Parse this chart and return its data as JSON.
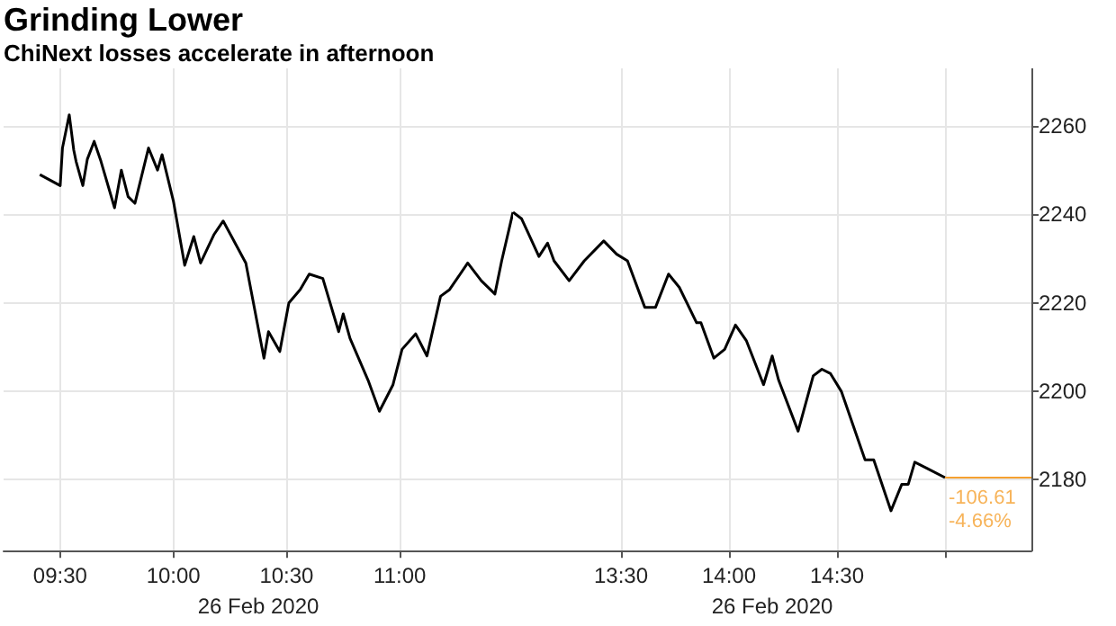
{
  "chart_data": [
    {
      "type": "line",
      "title": "Grinding Lower",
      "subtitle": "ChiNext losses accelerate in afternoon",
      "xlabel": "26 Feb 2020",
      "tick_labels": "x",
      "grid": true,
      "marker": "none",
      "line_style": "solid",
      "xlim": [
        9.25,
        11.5
      ],
      "xticks": [
        {
          "value": 9.5,
          "label": "09:30"
        },
        {
          "value": 10,
          "label": "10:00"
        },
        {
          "value": 10.5,
          "label": "10:30"
        },
        {
          "value": 11,
          "label": "11:00"
        }
      ],
      "ylim": [
        2164,
        2273
      ],
      "yticks": [
        2180,
        2200,
        2220,
        2240,
        2260
      ],
      "series": [
        {
          "color": "#000000",
          "x": [
            9.41,
            9.5,
            9.51,
            9.54,
            9.56,
            9.57,
            9.6,
            9.62,
            9.65,
            9.68,
            9.74,
            9.77,
            9.8,
            9.83,
            9.89,
            9.93,
            9.95,
            10.0,
            10.05,
            10.09,
            10.12,
            10.18,
            10.22,
            10.32,
            10.4,
            10.42,
            10.47,
            10.51,
            10.56,
            10.6,
            10.66,
            10.73,
            10.75,
            10.78,
            10.86,
            10.91,
            10.97,
            11.01,
            11.07,
            11.12,
            11.18,
            11.22,
            11.3,
            11.36,
            11.42,
            11.45,
            11.5
          ],
          "values": [
            2249,
            2246.5,
            2255,
            2262.5,
            2254.5,
            2252,
            2246.5,
            2252.5,
            2256.5,
            2252,
            2241.5,
            2250,
            2244,
            2242.5,
            2255,
            2250,
            2253.5,
            2243,
            2228.5,
            2235,
            2229,
            2235.5,
            2238.5,
            2229,
            2207.5,
            2213.5,
            2209,
            2220,
            2223,
            2226.5,
            2225.5,
            2213.5,
            2217.5,
            2212,
            2202.5,
            2195.5,
            2201.5,
            2209.5,
            2213,
            2208,
            2221.5,
            2223,
            2229,
            2225,
            2222,
            2229.5,
            2240.5
          ]
        }
      ]
    },
    {
      "type": "line",
      "xlabel": "26 Feb 2020",
      "grid": true,
      "marker": "none",
      "line_style": "solid",
      "xlim": [
        13,
        15.4
      ],
      "xticks": [
        {
          "value": 13.5,
          "label": "13:30"
        },
        {
          "value": 14,
          "label": "14:00"
        },
        {
          "value": 14.5,
          "label": "14:30"
        },
        {
          "value": 15,
          "label": null
        }
      ],
      "ylim": [
        2164,
        2273
      ],
      "yticks": [
        2180,
        2200,
        2220,
        2240,
        2260
      ],
      "ref_lines": [
        {
          "axis": "y",
          "value": 2180.5,
          "color": "#f5a030"
        }
      ],
      "annotations": [
        {
          "text": "-106.61\n-4.66%",
          "x": 15,
          "y": 2180.5
        }
      ],
      "series": [
        {
          "color": "#000000",
          "x": [
            13.0,
            13.04,
            13.12,
            13.16,
            13.19,
            13.26,
            13.33,
            13.42,
            13.48,
            13.53,
            13.61,
            13.66,
            13.72,
            13.77,
            13.85,
            13.87,
            13.93,
            13.98,
            14.03,
            14.08,
            14.16,
            14.2,
            14.23,
            14.32,
            14.39,
            14.43,
            14.47,
            14.52,
            14.63,
            14.67,
            14.75,
            14.8,
            14.83,
            14.86,
            14.92,
            15.0
          ],
          "values": [
            2240.5,
            2239,
            2230.5,
            2233.5,
            2229.5,
            2225,
            2229.5,
            2234,
            2231,
            2229.5,
            2219,
            2219,
            2226.5,
            2223.5,
            2215.5,
            2215.5,
            2207.5,
            2209.5,
            2215,
            2211.5,
            2201.5,
            2208,
            2202.5,
            2191,
            2203.5,
            2205,
            2204,
            2200,
            2184.5,
            2184.5,
            2173,
            2179,
            2179,
            2184,
            2182.5,
            2180.5
          ]
        }
      ]
    }
  ]
}
